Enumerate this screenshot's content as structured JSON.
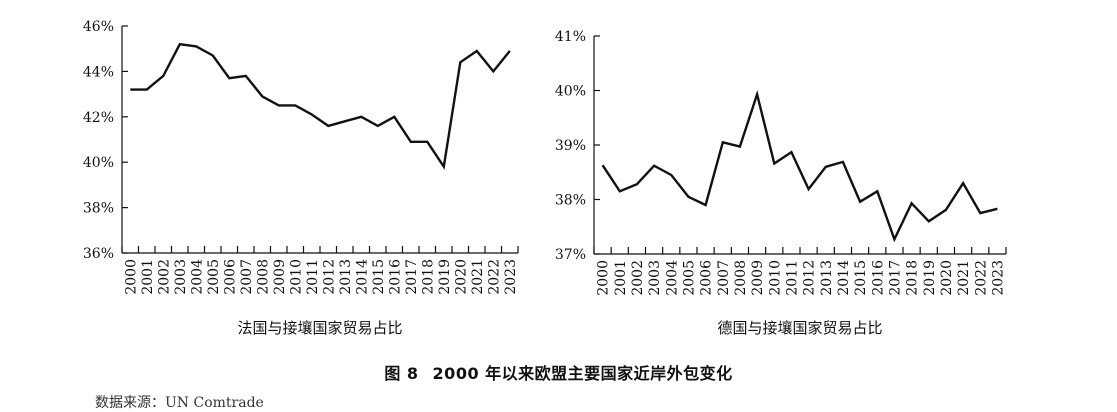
{
  "figure": {
    "number": "图 8",
    "title": "2000 年以来欧盟主要国家近岸外包变化",
    "source": "数据来源：UN Comtrade"
  },
  "chart_data": [
    {
      "type": "line",
      "title": "",
      "xlabel": "法国与接壤国家贸易占比",
      "ylabel": "",
      "x": [
        "2000",
        "2001",
        "2002",
        "2003",
        "2004",
        "2005",
        "2006",
        "2007",
        "2008",
        "2009",
        "2010",
        "2011",
        "2012",
        "2013",
        "2014",
        "2015",
        "2016",
        "2017",
        "2018",
        "2019",
        "2020",
        "2021",
        "2022",
        "2023"
      ],
      "series": [
        {
          "values": [
            43.2,
            43.2,
            43.8,
            45.2,
            45.1,
            44.7,
            43.7,
            43.8,
            42.9,
            42.5,
            42.5,
            42.1,
            41.6,
            41.8,
            42.0,
            41.6,
            42.0,
            40.9,
            40.9,
            39.8,
            44.4,
            44.9,
            44.0,
            44.9
          ]
        }
      ],
      "yticks": [
        "36%",
        "38%",
        "40%",
        "42%",
        "44%",
        "46%"
      ],
      "ylim": [
        36,
        46
      ],
      "grid": false,
      "color": "#111111"
    },
    {
      "type": "line",
      "title": "",
      "xlabel": "德国与接壤国家贸易占比",
      "ylabel": "",
      "x": [
        "2000",
        "2001",
        "2002",
        "2003",
        "2004",
        "2005",
        "2006",
        "2007",
        "2008",
        "2009",
        "2010",
        "2011",
        "2012",
        "2013",
        "2014",
        "2015",
        "2016",
        "2017",
        "2018",
        "2019",
        "2020",
        "2021",
        "2022",
        "2023"
      ],
      "series": [
        {
          "values": [
            38.63,
            38.15,
            38.28,
            38.62,
            38.45,
            38.05,
            37.9,
            39.05,
            38.97,
            39.93,
            38.66,
            38.87,
            38.19,
            38.6,
            38.69,
            37.96,
            38.15,
            37.27,
            37.93,
            37.6,
            37.81,
            38.3,
            37.75,
            37.83
          ]
        }
      ],
      "yticks": [
        "37%",
        "38%",
        "39%",
        "40%",
        "41%"
      ],
      "ylim": [
        37,
        41
      ],
      "grid": false,
      "color": "#111111"
    }
  ]
}
